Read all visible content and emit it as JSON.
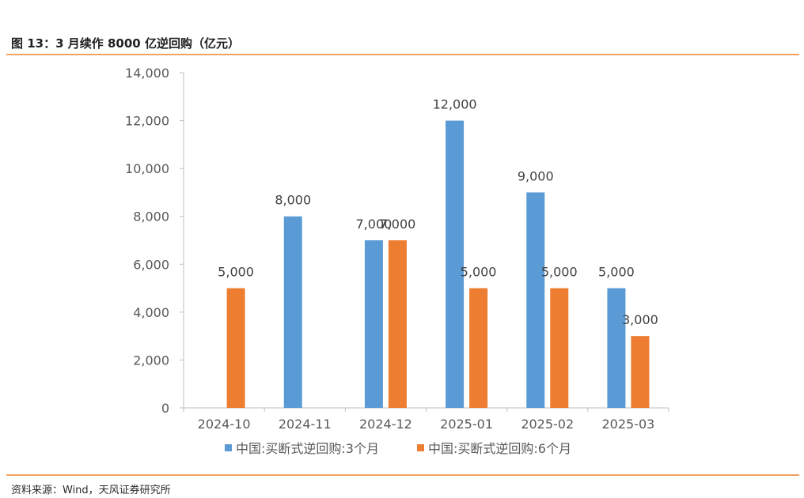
{
  "figure": {
    "title": "图 13：3 月续作 8000 亿逆回购（亿元）",
    "source": "资料来源：Wind，天风证券研究所"
  },
  "colors": {
    "series1": "#5b9bd5",
    "series2": "#ed7d31",
    "accent_rule": "#f0a262",
    "axis": "#bfbfbf"
  },
  "chart_data": {
    "type": "bar",
    "title": "",
    "xlabel": "",
    "ylabel": "",
    "categories": [
      "2024-10",
      "2024-11",
      "2024-12",
      "2025-01",
      "2025-02",
      "2025-03"
    ],
    "series": [
      {
        "name": "中国:买断式逆回购:3个月",
        "values": [
          null,
          8000,
          7000,
          12000,
          9000,
          5000
        ]
      },
      {
        "name": "中国:买断式逆回购:6个月",
        "values": [
          5000,
          null,
          7000,
          5000,
          5000,
          3000
        ]
      }
    ],
    "ylim": [
      0,
      14000
    ],
    "yticks": [
      0,
      2000,
      4000,
      6000,
      8000,
      10000,
      12000,
      14000
    ],
    "ytick_labels": [
      "0",
      "2,000",
      "4,000",
      "6,000",
      "8,000",
      "10,000",
      "12,000",
      "14,000"
    ],
    "grid": false,
    "legend_position": "bottom",
    "data_labels": true
  }
}
